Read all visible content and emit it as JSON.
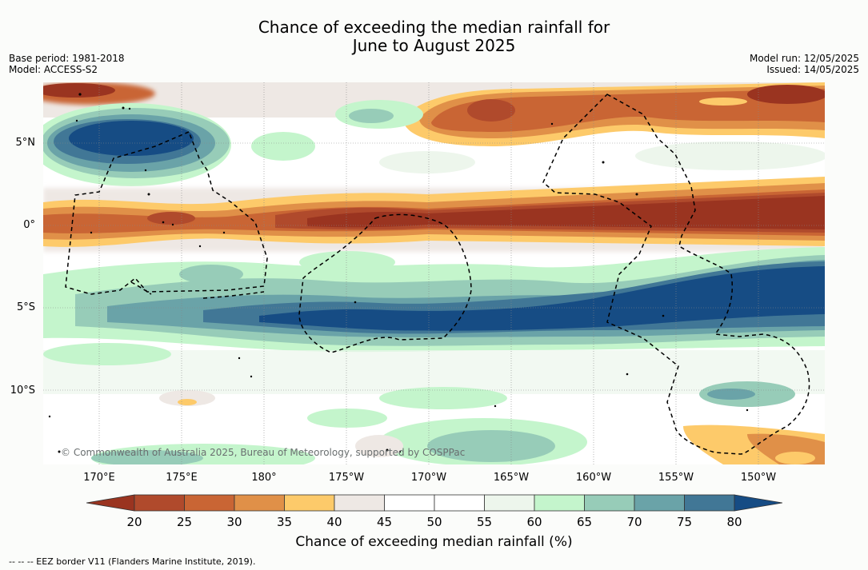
{
  "header": {
    "title_line1": "Chance of exceeding the median rainfall for",
    "title_line2": "June to August 2025",
    "base_period": "Base period: 1981-2018",
    "model": "Model: ACCESS-S2",
    "model_run": "Model run: 12/05/2025",
    "issued": "Issued: 14/05/2025"
  },
  "map": {
    "copyright": "© Commonwealth of Australia 2025, Bureau of Meteorology, supported by COSPPac",
    "lat_labels": [
      "5°N",
      "0°",
      "5°S",
      "10°S"
    ],
    "lon_labels": [
      "170°E",
      "175°E",
      "180°",
      "175°W",
      "170°W",
      "165°W",
      "160°W",
      "155°W",
      "150°W"
    ],
    "eez_color": "#000000",
    "land_color": "#000000"
  },
  "colorbar": {
    "ticks": [
      "20",
      "25",
      "30",
      "35",
      "40",
      "45",
      "50",
      "55",
      "60",
      "65",
      "70",
      "75",
      "80"
    ],
    "colors": [
      "#9a3420",
      "#b04a2c",
      "#c96534",
      "#e09048",
      "#fdca6a",
      "#eee8e4",
      "#ffffff",
      "#ffffff",
      "#edf6ec",
      "#c4f5cc",
      "#97ccb8",
      "#6aa3a8",
      "#417796",
      "#164c84"
    ],
    "label": "Chance of exceeding median rainfall (%)"
  },
  "footnote": "--  --  -- EEZ border V11 (Flanders Marine Institute, 2019)."
}
